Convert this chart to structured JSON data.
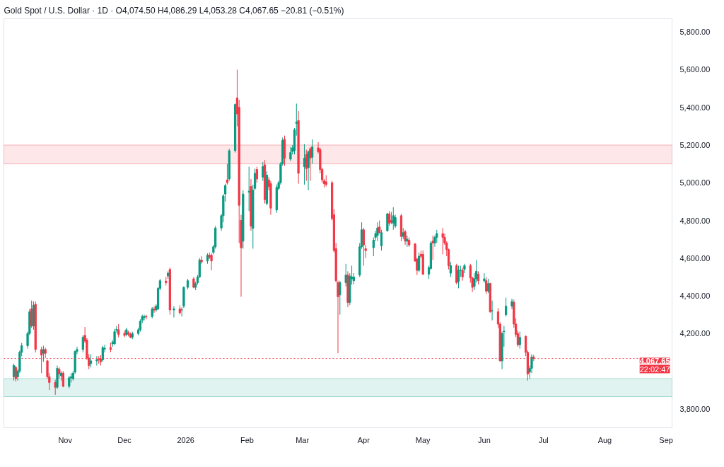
{
  "chart_data": {
    "type": "candlestick",
    "title": "Gold Spot / U.S. Dollar · 1D · O4,074.50 H4,086.29 L4,053.28 C4,067.65 −20.81 (−0.51%)",
    "colors": [
      "#089981",
      "#f23645",
      "#089981",
      "#089981",
      "#089981",
      "#089981",
      "#089981",
      "#f23645",
      "#089981",
      "#f23645",
      "#f23645",
      "#089981",
      "#f23645",
      "#f23645",
      "#f23645",
      "#f23645",
      "#089981",
      "#f23645",
      "#089981",
      "#f23645",
      "#089981",
      "#089981",
      "#089981",
      "#089981",
      "#089981",
      "#089981",
      "#f23645",
      "#f23645",
      "#f23645",
      "#089981",
      "#089981",
      "#f23645",
      "#f23645",
      "#089981",
      "#089981",
      "#f23645",
      "#089981",
      "#089981",
      "#089981",
      "#f23645",
      "#f23645",
      "#089981",
      "#f23645",
      "#f23645",
      "#089981",
      "#089981",
      "#089981",
      "#089981",
      "#089981",
      "#f23645",
      "#089981",
      "#f23645",
      "#089981",
      "#089981",
      "#089981",
      "#f23645",
      "#089981",
      "#f23645",
      "#089981",
      "#f23645",
      "#089981",
      "#089981",
      "#089981",
      "#f23645",
      "#089981",
      "#089981",
      "#089981",
      "#f23645",
      "#089981",
      "#f23645",
      "#f23645",
      "#089981",
      "#089981",
      "#089981",
      "#089981",
      "#089981",
      "#f23645",
      "#089981",
      "#089981",
      "#f23645",
      "#f23645",
      "#f23645",
      "#089981",
      "#089981",
      "#f23645",
      "#089981",
      "#089981",
      "#f23645",
      "#089981",
      "#f23645",
      "#089981",
      "#f23645",
      "#f23645",
      "#089981",
      "#089981",
      "#089981",
      "#089981",
      "#f23645",
      "#089981",
      "#089981",
      "#089981",
      "#089981",
      "#f23645",
      "#089981",
      "#f23645",
      "#089981",
      "#f23645",
      "#089981",
      "#f23645",
      "#f23645",
      "#f23645",
      "#f23645",
      "#f23645",
      "#f23645",
      "#f23645",
      "#f23645",
      "#f23645",
      "#089981",
      "#089981",
      "#f23645",
      "#089981",
      "#089981",
      "#089981",
      "#089981",
      "#089981",
      "#f23645",
      "#f23645",
      "#089981",
      "#089981",
      "#089981",
      "#f23645",
      "#089981",
      "#089981",
      "#f23645",
      "#f23645",
      "#089981",
      "#089981",
      "#f23645",
      "#089981",
      "#f23645",
      "#089981",
      "#f23645",
      "#f23645",
      "#f23645",
      "#089981",
      "#f23645",
      "#f23645",
      "#089981",
      "#089981",
      "#f23645",
      "#089981",
      "#089981",
      "#f23645",
      "#f23645",
      "#f23645",
      "#f23645",
      "#089981",
      "#f23645",
      "#089981",
      "#089981",
      "#f23645",
      "#089981",
      "#f23645",
      "#f23645",
      "#089981",
      "#089981",
      "#f23645",
      "#089981",
      "#f23645",
      "#089981",
      "#f23645",
      "#089981",
      "#f23645",
      "#f23645",
      "#089981",
      "#089981",
      "#089981",
      "#089981",
      "#f23645",
      "#f23645",
      "#f23645",
      "#089981",
      "#f23645",
      "#f23645",
      "#089981",
      "#089981",
      "#f23645"
    ],
    "x": [
      "2025-10-06",
      "2025-10-07",
      "2025-10-08",
      "2025-10-09",
      "2025-10-10",
      "2025-10-13",
      "2025-10-14",
      "2025-10-15",
      "2025-10-16",
      "2025-10-17",
      "2025-10-20",
      "2025-10-21",
      "2025-10-22",
      "2025-10-23",
      "2025-10-24",
      "2025-10-27",
      "2025-10-28",
      "2025-10-29",
      "2025-10-30",
      "2025-10-31",
      "2025-11-03",
      "2025-11-04",
      "2025-11-05",
      "2025-11-06",
      "2025-11-07",
      "2025-11-10",
      "2025-11-11",
      "2025-11-12",
      "2025-11-13",
      "2025-11-14",
      "2025-11-17",
      "2025-11-18",
      "2025-11-19",
      "2025-11-20",
      "2025-11-21",
      "2025-11-24",
      "2025-11-25",
      "2025-11-26",
      "2025-11-27",
      "2025-11-28",
      "2025-12-01",
      "2025-12-02",
      "2025-12-03",
      "2025-12-04",
      "2025-12-05",
      "2025-12-08",
      "2025-12-09",
      "2025-12-10",
      "2025-12-11",
      "2025-12-12",
      "2025-12-15",
      "2025-12-16",
      "2025-12-17",
      "2025-12-18",
      "2025-12-19",
      "2025-12-22",
      "2025-12-23",
      "2025-12-24",
      "2025-12-26",
      "2025-12-29",
      "2025-12-30",
      "2025-12-31",
      "2026-01-02",
      "2026-01-05",
      "2026-01-06",
      "2026-01-07",
      "2026-01-08",
      "2026-01-09",
      "2026-01-12",
      "2026-01-13",
      "2026-01-14",
      "2026-01-15",
      "2026-01-16",
      "2026-01-19",
      "2026-01-20",
      "2026-01-21",
      "2026-01-22",
      "2026-01-23",
      "2026-01-26",
      "2026-01-27",
      "2026-01-28",
      "2026-01-29",
      "2026-01-30",
      "2026-02-02",
      "2026-02-03",
      "2026-02-04",
      "2026-02-05",
      "2026-02-06",
      "2026-02-09",
      "2026-02-10",
      "2026-02-11",
      "2026-02-12",
      "2026-02-13",
      "2026-02-16",
      "2026-02-17",
      "2026-02-18",
      "2026-02-19",
      "2026-02-20",
      "2026-02-23",
      "2026-02-24",
      "2026-02-25",
      "2026-02-26",
      "2026-02-27",
      "2026-03-02",
      "2026-03-03",
      "2026-03-04",
      "2026-03-05",
      "2026-03-06",
      "2026-03-09",
      "2026-03-10",
      "2026-03-11",
      "2026-03-12",
      "2026-03-13",
      "2026-03-16",
      "2026-03-17",
      "2026-03-18",
      "2026-03-19",
      "2026-03-20",
      "2026-03-23",
      "2026-03-24",
      "2026-03-25",
      "2026-03-26",
      "2026-03-27",
      "2026-03-30",
      "2026-03-31",
      "2026-04-01",
      "2026-04-02",
      "2026-04-06",
      "2026-04-07",
      "2026-04-08",
      "2026-04-09",
      "2026-04-10",
      "2026-04-13",
      "2026-04-14",
      "2026-04-15",
      "2026-04-16",
      "2026-04-17",
      "2026-04-20",
      "2026-04-21",
      "2026-04-22",
      "2026-04-23",
      "2026-04-24",
      "2026-04-27",
      "2026-04-28",
      "2026-04-29",
      "2026-04-30",
      "2026-05-01",
      "2026-05-04",
      "2026-05-05",
      "2026-05-06",
      "2026-05-07",
      "2026-05-08",
      "2026-05-11",
      "2026-05-12",
      "2026-05-13",
      "2026-05-14",
      "2026-05-15",
      "2026-05-18",
      "2026-05-19",
      "2026-05-20",
      "2026-05-21",
      "2026-05-22",
      "2026-05-25",
      "2026-05-26",
      "2026-05-27",
      "2026-05-28",
      "2026-05-29",
      "2026-06-01",
      "2026-06-02",
      "2026-06-03",
      "2026-06-04",
      "2026-06-05",
      "2026-06-08",
      "2026-06-09",
      "2026-06-10",
      "2026-06-11",
      "2026-06-12",
      "2026-06-15",
      "2026-06-16",
      "2026-06-17",
      "2026-06-18",
      "2026-06-19",
      "2026-06-22",
      "2026-06-23",
      "2026-06-24",
      "2026-06-25",
      "2026-06-26"
    ],
    "ohlc": [
      [
        3970,
        4040,
        3950,
        4030
      ],
      [
        4020,
        4030,
        3945,
        3960
      ],
      [
        3970,
        4010,
        3950,
        4000
      ],
      [
        4000,
        4110,
        3990,
        4100
      ],
      [
        4100,
        4150,
        4080,
        4135
      ],
      [
        4135,
        4210,
        4120,
        4200
      ],
      [
        4200,
        4330,
        4190,
        4315
      ],
      [
        4330,
        4375,
        4230,
        4240
      ],
      [
        4240,
        4370,
        4220,
        4350
      ],
      [
        4355,
        4370,
        4100,
        4115
      ],
      [
        4115,
        4130,
        3990,
        4085
      ],
      [
        4095,
        4135,
        4050,
        4115
      ],
      [
        4115,
        4125,
        4070,
        4095
      ],
      [
        4055,
        4060,
        3960,
        3970
      ],
      [
        3970,
        3990,
        3900,
        3940
      ],
      [
        3940,
        3955,
        3875,
        3915
      ],
      [
        3915,
        4030,
        3905,
        4015
      ],
      [
        4010,
        4020,
        3960,
        3985
      ],
      [
        3975,
        4000,
        3950,
        3990
      ],
      [
        3990,
        4000,
        3915,
        3920
      ],
      [
        3920,
        3975,
        3910,
        3965
      ],
      [
        3965,
        3990,
        3940,
        3970
      ],
      [
        3960,
        4000,
        3950,
        3990
      ],
      [
        3995,
        4110,
        3985,
        4105
      ],
      [
        4105,
        4130,
        4090,
        4115
      ],
      [
        4115,
        4190,
        4100,
        4180
      ],
      [
        4190,
        4235,
        4150,
        4160
      ],
      [
        4165,
        4175,
        4060,
        4070
      ],
      [
        4070,
        4090,
        4010,
        4030
      ],
      [
        4040,
        4090,
        4020,
        4055
      ],
      [
        4055,
        4080,
        4030,
        4060
      ],
      [
        4065,
        4080,
        4040,
        4060
      ],
      [
        4065,
        4085,
        4030,
        4050
      ],
      [
        4060,
        4135,
        4050,
        4125
      ],
      [
        4118,
        4140,
        4100,
        4122
      ],
      [
        4125,
        4150,
        4100,
        4115
      ],
      [
        4145,
        4165,
        4130,
        4155
      ],
      [
        4145,
        4225,
        4140,
        4210
      ],
      [
        4218,
        4240,
        4205,
        4222
      ],
      [
        4220,
        4250,
        4180,
        4195
      ],
      [
        4200,
        4215,
        4180,
        4190
      ],
      [
        4195,
        4230,
        4185,
        4220
      ],
      [
        4205,
        4215,
        4185,
        4195
      ],
      [
        4195,
        4205,
        4175,
        4180
      ],
      [
        4180,
        4210,
        4170,
        4200
      ],
      [
        4200,
        4230,
        4190,
        4220
      ],
      [
        4220,
        4275,
        4210,
        4265
      ],
      [
        4270,
        4300,
        4255,
        4290
      ],
      [
        4285,
        4300,
        4270,
        4290
      ],
      [
        4290,
        4300,
        4275,
        4288
      ],
      [
        4290,
        4340,
        4280,
        4330
      ],
      [
        4330,
        4345,
        4310,
        4325
      ],
      [
        4325,
        4355,
        4315,
        4345
      ],
      [
        4330,
        4445,
        4325,
        4440
      ],
      [
        4440,
        4490,
        4430,
        4480
      ],
      [
        4478,
        4500,
        4455,
        4470
      ],
      [
        4505,
        4530,
        4490,
        4520
      ],
      [
        4540,
        4550,
        4300,
        4325
      ],
      [
        4325,
        4345,
        4285,
        4330
      ],
      [
        4330,
        4350,
        4300,
        4310
      ],
      [
        4325,
        4340,
        4290,
        4326
      ],
      [
        4345,
        4450,
        4335,
        4445
      ],
      [
        4445,
        4490,
        4435,
        4480
      ],
      [
        4490,
        4500,
        4440,
        4445
      ],
      [
        4445,
        4475,
        4430,
        4465
      ],
      [
        4470,
        4510,
        4460,
        4500
      ],
      [
        4500,
        4600,
        4495,
        4590
      ],
      [
        4590,
        4610,
        4570,
        4580
      ],
      [
        4585,
        4625,
        4570,
        4615
      ],
      [
        4615,
        4630,
        4595,
        4605
      ],
      [
        4615,
        4625,
        4535,
        4585
      ],
      [
        4630,
        4670,
        4620,
        4660
      ],
      [
        4660,
        4770,
        4650,
        4760
      ],
      [
        4760,
        4835,
        4745,
        4825
      ],
      [
        4825,
        4940,
        4790,
        4930
      ],
      [
        4940,
        4995,
        4900,
        4985
      ],
      [
        5015,
        5100,
        4990,
        5000
      ],
      [
        5020,
        5180,
        5010,
        5170
      ],
      [
        5170,
        5420,
        5160,
        5415
      ],
      [
        5450,
        5600,
        5300,
        5365
      ],
      [
        5400,
        5440,
        4680,
        4880
      ],
      [
        4800,
        4830,
        4395,
        4655
      ],
      [
        4690,
        4960,
        4650,
        4940
      ],
      [
        4950,
        5085,
        4850,
        4955
      ],
      [
        4980,
        5020,
        4745,
        4770
      ],
      [
        4758,
        4990,
        4650,
        4960
      ],
      [
        4970,
        5075,
        4960,
        5050
      ],
      [
        5070,
        5085,
        5000,
        5020
      ],
      [
        5030,
        5110,
        5010,
        5085
      ],
      [
        5095,
        5120,
        4890,
        4910
      ],
      [
        4890,
        5060,
        4880,
        5040
      ],
      [
        5015,
        5030,
        4960,
        4980
      ],
      [
        4995,
        5010,
        4830,
        4865
      ],
      [
        4855,
        4990,
        4840,
        4975
      ],
      [
        4970,
        5010,
        4960,
        5000
      ],
      [
        5000,
        5110,
        4990,
        5100
      ],
      [
        5100,
        5240,
        5090,
        5225
      ],
      [
        5230,
        5250,
        5090,
        5130
      ],
      [
        5125,
        5190,
        5115,
        5160
      ],
      [
        5165,
        5200,
        5150,
        5185
      ],
      [
        5170,
        5290,
        5150,
        5280
      ],
      [
        5315,
        5420,
        5250,
        5322
      ],
      [
        5330,
        5380,
        4995,
        5050
      ],
      [
        5085,
        5205,
        4990,
        5130
      ],
      [
        5150,
        5175,
        5010,
        5075
      ],
      [
        5080,
        5170,
        4960,
        5165
      ],
      [
        5180,
        5190,
        5010,
        5130
      ],
      [
        5135,
        5230,
        5100,
        5190
      ],
      [
        5185,
        5215,
        5155,
        5165
      ],
      [
        5175,
        5185,
        5050,
        5070
      ],
      [
        5070,
        5080,
        5000,
        5015
      ],
      [
        5010,
        5020,
        4975,
        4995
      ],
      [
        5005,
        5040,
        4980,
        4990
      ],
      [
        5000,
        5010,
        4800,
        4810
      ],
      [
        4830,
        4860,
        4630,
        4640
      ],
      [
        4650,
        4680,
        4470,
        4480
      ],
      [
        4470,
        4480,
        4095,
        4395
      ],
      [
        4405,
        4480,
        4300,
        4470
      ],
      [
        4470,
        4570,
        4450,
        4510
      ],
      [
        4510,
        4530,
        4340,
        4365
      ],
      [
        4365,
        4520,
        4350,
        4505
      ],
      [
        4490,
        4560,
        4460,
        4500
      ],
      [
        4480,
        4520,
        4460,
        4500
      ],
      [
        4510,
        4680,
        4500,
        4660
      ],
      [
        4660,
        4790,
        4650,
        4750
      ],
      [
        4750,
        4760,
        4560,
        4670
      ],
      [
        4650,
        4670,
        4600,
        4640
      ],
      [
        4655,
        4710,
        4610,
        4695
      ],
      [
        4710,
        4745,
        4690,
        4730
      ],
      [
        4720,
        4790,
        4690,
        4760
      ],
      [
        4765,
        4800,
        4730,
        4735
      ],
      [
        4665,
        4750,
        4640,
        4735
      ],
      [
        4745,
        4840,
        4740,
        4835
      ],
      [
        4835,
        4850,
        4770,
        4785
      ],
      [
        4800,
        4845,
        4780,
        4790
      ],
      [
        4785,
        4870,
        4750,
        4825
      ],
      [
        4770,
        4830,
        4760,
        4815
      ],
      [
        4825,
        4835,
        4690,
        4715
      ],
      [
        4715,
        4760,
        4700,
        4735
      ],
      [
        4740,
        4750,
        4670,
        4690
      ],
      [
        4690,
        4720,
        4660,
        4700
      ],
      [
        4695,
        4710,
        4660,
        4670
      ],
      [
        4675,
        4680,
        4580,
        4585
      ],
      [
        4595,
        4600,
        4510,
        4535
      ],
      [
        4535,
        4630,
        4525,
        4610
      ],
      [
        4620,
        4640,
        4600,
        4610
      ],
      [
        4620,
        4640,
        4510,
        4515
      ],
      [
        4515,
        4560,
        4490,
        4550
      ],
      [
        4545,
        4690,
        4540,
        4680
      ],
      [
        4690,
        4720,
        4590,
        4680
      ],
      [
        4680,
        4720,
        4660,
        4710
      ],
      [
        4710,
        4750,
        4680,
        4730
      ],
      [
        4730,
        4760,
        4620,
        4710
      ],
      [
        4710,
        4730,
        4670,
        4680
      ],
      [
        4680,
        4690,
        4610,
        4645
      ],
      [
        4645,
        4650,
        4540,
        4560
      ],
      [
        4520,
        4580,
        4500,
        4560
      ],
      [
        4560,
        4570,
        4460,
        4470
      ],
      [
        4475,
        4560,
        4440,
        4535
      ],
      [
        4535,
        4560,
        4500,
        4536
      ],
      [
        4535,
        4550,
        4480,
        4500
      ],
      [
        4540,
        4570,
        4520,
        4560
      ],
      [
        4560,
        4570,
        4470,
        4495
      ],
      [
        4495,
        4500,
        4420,
        4445
      ],
      [
        4450,
        4520,
        4430,
        4490
      ],
      [
        4490,
        4590,
        4470,
        4530
      ],
      [
        4515,
        4530,
        4460,
        4480
      ],
      [
        4480,
        4520,
        4470,
        4490
      ],
      [
        4480,
        4500,
        4410,
        4425
      ],
      [
        4425,
        4490,
        4415,
        4465
      ],
      [
        4465,
        4470,
        4310,
        4315
      ],
      [
        4320,
        4375,
        4270,
        4322
      ],
      [
        4315,
        4335,
        4230,
        4250
      ],
      [
        4250,
        4260,
        4050,
        4055
      ],
      [
        4055,
        4210,
        4010,
        4200
      ],
      [
        4210,
        4240,
        4130,
        4212
      ],
      [
        4300,
        4390,
        4290,
        4345
      ],
      [
        4345,
        4385,
        4330,
        4370
      ],
      [
        4365,
        4380,
        4230,
        4250
      ],
      [
        4250,
        4280,
        4180,
        4195
      ],
      [
        4200,
        4215,
        4130,
        4140
      ],
      [
        4140,
        4210,
        4120,
        4180
      ],
      [
        4185,
        4190,
        4080,
        4100
      ],
      [
        4100,
        4110,
        3950,
        3985
      ],
      [
        3995,
        4030,
        3960,
        4015
      ],
      [
        4015,
        4090,
        3990,
        4075
      ],
      [
        4074.5,
        4086.29,
        4053.28,
        4067.65
      ]
    ],
    "xlim": [
      "2025-10-01",
      "2026-09-04"
    ],
    "xticks": [
      {
        "value": "2025-11-01",
        "label": "Nov"
      },
      {
        "value": "2025-12-01",
        "label": "Dec"
      },
      {
        "value": "2026-01-01",
        "label": "2026"
      },
      {
        "value": "2026-02-01",
        "label": "Feb"
      },
      {
        "value": "2026-03-01",
        "label": "Mar"
      },
      {
        "value": "2026-04-01",
        "label": "Apr"
      },
      {
        "value": "2026-05-01",
        "label": "May"
      },
      {
        "value": "2026-06-01",
        "label": "Jun"
      },
      {
        "value": "2026-07-01",
        "label": "Jul"
      },
      {
        "value": "2026-08-01",
        "label": "Aug"
      },
      {
        "value": "2026-09-01",
        "label": "Sep"
      }
    ],
    "ylim": [
      3700,
      5870
    ],
    "yticks": [
      {
        "value": 3800,
        "label": "3,800.00"
      },
      {
        "value": 4200,
        "label": "4,200.00"
      },
      {
        "value": 4400,
        "label": "4,400.00"
      },
      {
        "value": 4600,
        "label": "4,600.00"
      },
      {
        "value": 4800,
        "label": "4,800.00"
      },
      {
        "value": 5000,
        "label": "5,000.00"
      },
      {
        "value": 5200,
        "label": "5,200.00"
      },
      {
        "value": 5400,
        "label": "5,400.00"
      },
      {
        "value": 5600,
        "label": "5,600.00"
      },
      {
        "value": 5800,
        "label": "5,800.00"
      }
    ],
    "bands": [
      {
        "axis": "y",
        "from": 5100,
        "to": 5200,
        "color": "#f23645"
      },
      {
        "axis": "y",
        "from": 3865,
        "to": 3960,
        "color": "#089981"
      }
    ],
    "ref_lines": [
      {
        "axis": "y",
        "value": 4067.65,
        "label": "4,067.65",
        "color": "#f23645",
        "line_style": "dotted"
      }
    ],
    "annotations": [
      "22:02:47"
    ],
    "grid": false
  }
}
